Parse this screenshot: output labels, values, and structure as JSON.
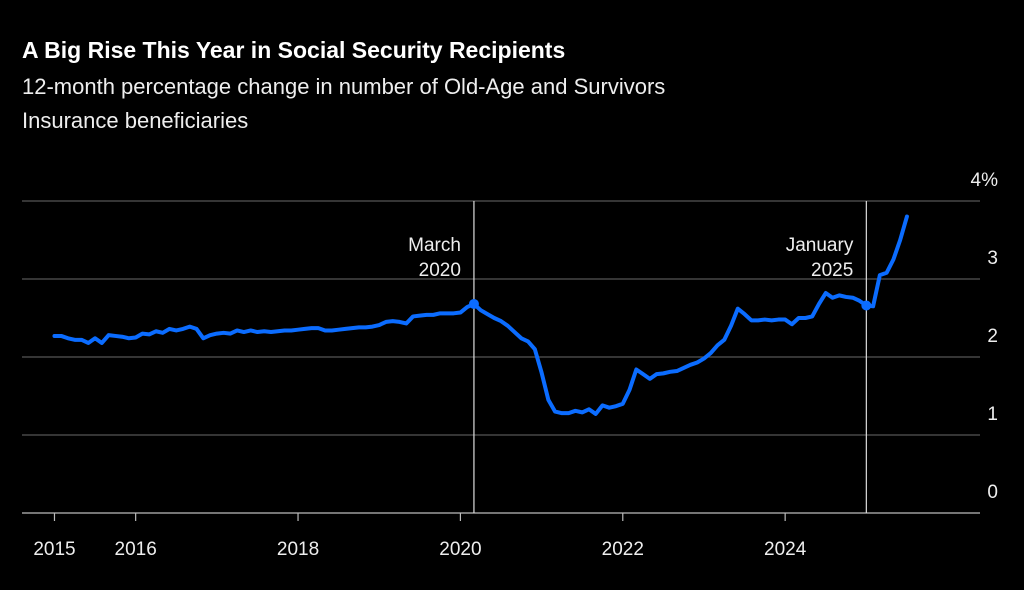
{
  "chart_data": {
    "type": "line",
    "title": "A Big Rise This Year in Social Security Recipients",
    "subtitle": [
      "12-month percentage change in number of Old-Age and Survivors",
      "Insurance beneficiaries"
    ],
    "color": "#0b6cff",
    "x": [
      "2015-01",
      "2015-02",
      "2015-03",
      "2015-04",
      "2015-05",
      "2015-06",
      "2015-07",
      "2015-08",
      "2015-09",
      "2015-10",
      "2015-11",
      "2015-12",
      "2016-01",
      "2016-02",
      "2016-03",
      "2016-04",
      "2016-05",
      "2016-06",
      "2016-07",
      "2016-08",
      "2016-09",
      "2016-10",
      "2016-11",
      "2016-12",
      "2017-01",
      "2017-02",
      "2017-03",
      "2017-04",
      "2017-05",
      "2017-06",
      "2017-07",
      "2017-08",
      "2017-09",
      "2017-10",
      "2017-11",
      "2017-12",
      "2018-01",
      "2018-02",
      "2018-03",
      "2018-04",
      "2018-05",
      "2018-06",
      "2018-07",
      "2018-08",
      "2018-09",
      "2018-10",
      "2018-11",
      "2018-12",
      "2019-01",
      "2019-02",
      "2019-03",
      "2019-04",
      "2019-05",
      "2019-06",
      "2019-07",
      "2019-08",
      "2019-09",
      "2019-10",
      "2019-11",
      "2019-12",
      "2020-01",
      "2020-02",
      "2020-03",
      "2020-04",
      "2020-05",
      "2020-06",
      "2020-07",
      "2020-08",
      "2020-09",
      "2020-10",
      "2020-11",
      "2020-12",
      "2021-01",
      "2021-02",
      "2021-03",
      "2021-04",
      "2021-05",
      "2021-06",
      "2021-07",
      "2021-08",
      "2021-09",
      "2021-10",
      "2021-11",
      "2021-12",
      "2022-01",
      "2022-02",
      "2022-03",
      "2022-04",
      "2022-05",
      "2022-06",
      "2022-07",
      "2022-08",
      "2022-09",
      "2022-10",
      "2022-11",
      "2022-12",
      "2023-01",
      "2023-02",
      "2023-03",
      "2023-04",
      "2023-05",
      "2023-06",
      "2023-07",
      "2023-08",
      "2023-09",
      "2023-10",
      "2023-11",
      "2023-12",
      "2024-01",
      "2024-02",
      "2024-03",
      "2024-04",
      "2024-05",
      "2024-06",
      "2024-07",
      "2024-08",
      "2024-09",
      "2024-10",
      "2024-11",
      "2024-12",
      "2025-01",
      "2025-02",
      "2025-03",
      "2025-04",
      "2025-05",
      "2025-06",
      "2025-07"
    ],
    "values": [
      2.27,
      2.27,
      2.24,
      2.22,
      2.22,
      2.18,
      2.24,
      2.18,
      2.28,
      2.27,
      2.26,
      2.24,
      2.25,
      2.3,
      2.29,
      2.33,
      2.31,
      2.36,
      2.34,
      2.36,
      2.39,
      2.36,
      2.24,
      2.28,
      2.3,
      2.31,
      2.3,
      2.34,
      2.32,
      2.34,
      2.32,
      2.33,
      2.32,
      2.33,
      2.34,
      2.34,
      2.35,
      2.36,
      2.37,
      2.37,
      2.34,
      2.34,
      2.35,
      2.36,
      2.37,
      2.38,
      2.38,
      2.39,
      2.41,
      2.45,
      2.46,
      2.45,
      2.43,
      2.52,
      2.53,
      2.54,
      2.54,
      2.56,
      2.56,
      2.56,
      2.57,
      2.64,
      2.68,
      2.6,
      2.55,
      2.5,
      2.46,
      2.4,
      2.32,
      2.24,
      2.2,
      2.1,
      1.8,
      1.45,
      1.3,
      1.28,
      1.28,
      1.31,
      1.29,
      1.33,
      1.27,
      1.38,
      1.35,
      1.37,
      1.4,
      1.58,
      1.84,
      1.78,
      1.72,
      1.78,
      1.79,
      1.81,
      1.82,
      1.86,
      1.9,
      1.93,
      1.98,
      2.05,
      2.15,
      2.22,
      2.4,
      2.62,
      2.55,
      2.47,
      2.47,
      2.48,
      2.47,
      2.48,
      2.48,
      2.42,
      2.5,
      2.5,
      2.52,
      2.68,
      2.82,
      2.76,
      2.79,
      2.77,
      2.76,
      2.72,
      2.66,
      2.65,
      3.05,
      3.08,
      3.25,
      3.5,
      3.8
    ],
    "xlim": [
      2014.6,
      2026.4
    ],
    "xticks": [
      2015,
      2016,
      2018,
      2020,
      2022,
      2024
    ],
    "ylim": [
      0,
      4
    ],
    "yticks": [
      0,
      1,
      2,
      3,
      {
        "value": 4,
        "label": "4%"
      }
    ],
    "grid": true,
    "annotations": [
      {
        "x": "2020-03",
        "lines": [
          "March",
          "2020"
        ]
      },
      {
        "x": "2025-01",
        "lines": [
          "January",
          "2025"
        ]
      }
    ]
  }
}
